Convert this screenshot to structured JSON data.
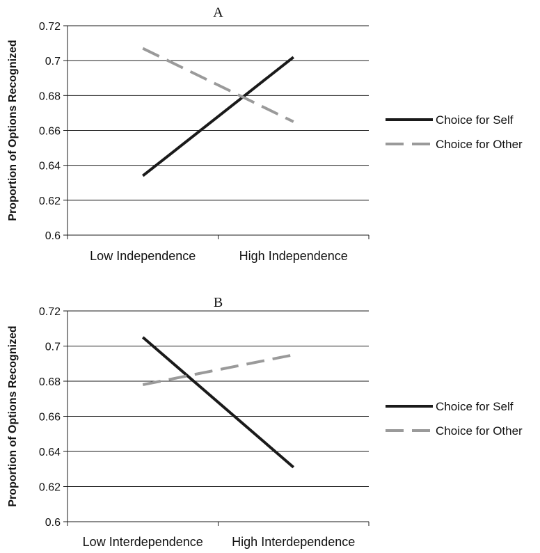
{
  "chart_data": [
    {
      "type": "line",
      "title": "A",
      "ylabel": "Proportion of Options Recognized",
      "xlabel": "",
      "categories": [
        "Low Independence",
        "High Independence"
      ],
      "ylim": [
        0.6,
        0.72
      ],
      "yticks": [
        "0.6",
        "0.62",
        "0.64",
        "0.66",
        "0.68",
        "0.7",
        "0.72"
      ],
      "grid": true,
      "legend_position": "right",
      "series": [
        {
          "name": "Choice for Self",
          "values": [
            0.634,
            0.702
          ],
          "color": "#1a1a1a",
          "style": "solid"
        },
        {
          "name": "Choice for Other",
          "values": [
            0.707,
            0.665
          ],
          "color": "#9a9a9a",
          "style": "dashed"
        }
      ]
    },
    {
      "type": "line",
      "title": "B",
      "ylabel": "Proportion of Options Recognized",
      "xlabel": "",
      "categories": [
        "Low Interdependence",
        "High Interdependence"
      ],
      "ylim": [
        0.6,
        0.72
      ],
      "yticks": [
        "0.6",
        "0.62",
        "0.64",
        "0.66",
        "0.68",
        "0.7",
        "0.72"
      ],
      "grid": true,
      "legend_position": "right",
      "series": [
        {
          "name": "Choice for Self",
          "values": [
            0.705,
            0.631
          ],
          "color": "#1a1a1a",
          "style": "solid"
        },
        {
          "name": "Choice for Other",
          "values": [
            0.678,
            0.695
          ],
          "color": "#9a9a9a",
          "style": "dashed"
        }
      ]
    }
  ]
}
